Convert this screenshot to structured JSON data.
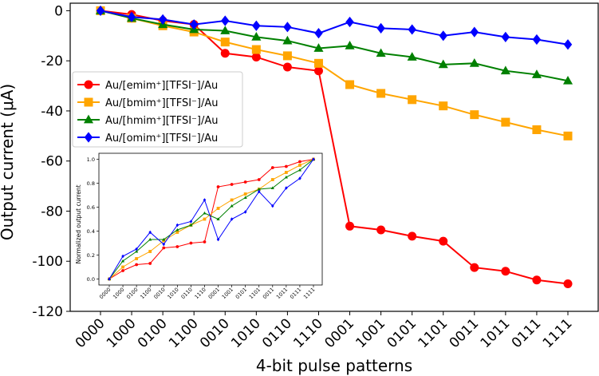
{
  "chart_data": {
    "type": "line",
    "xlabel": "4-bit pulse patterns",
    "ylabel": "Output current (μA)",
    "categories": [
      "0000",
      "1000",
      "0100",
      "1100",
      "0010",
      "1010",
      "0110",
      "1110",
      "0001",
      "1001",
      "0101",
      "1101",
      "0011",
      "1011",
      "0111",
      "1111"
    ],
    "ylim": [
      -120,
      3
    ],
    "yticks": [
      0,
      -20,
      -40,
      -60,
      -80,
      -100,
      -120
    ],
    "grid": false,
    "legend_position": "upper-left",
    "series": [
      {
        "name": "Au/[emim⁺][TFSI⁻]/Au",
        "color": "#ff0000",
        "marker": "circle",
        "values": [
          0,
          -1.5,
          -4,
          -5.5,
          -17,
          -18.5,
          -22.5,
          -24,
          -86,
          -87.5,
          -90,
          -92,
          -102.5,
          -104,
          -107.5,
          -109
        ]
      },
      {
        "name": "Au/[bmim⁺][TFSI⁻]/Au",
        "color": "#ffa500",
        "marker": "square",
        "values": [
          0,
          -3,
          -6,
          -8.5,
          -12.5,
          -15.5,
          -18,
          -21,
          -29.5,
          -33,
          -35.5,
          -38,
          -41.5,
          -44.5,
          -47.5,
          -50
        ]
      },
      {
        "name": "Au/[hmim⁺][TFSI⁻]/Au",
        "color": "#008000",
        "marker": "triangle",
        "values": [
          0,
          -3,
          -5.5,
          -7.5,
          -8,
          -10.5,
          -12,
          -15,
          -14,
          -17,
          -18.5,
          -21.5,
          -21,
          -24,
          -25.5,
          -28
        ]
      },
      {
        "name": "Au/[omim⁺][TFSI⁻]/Au",
        "color": "#0000ff",
        "marker": "diamond",
        "values": [
          0,
          -2.5,
          -3.5,
          -5.5,
          -4,
          -6,
          -6.5,
          -9,
          -4.5,
          -7,
          -7.5,
          -10,
          -8.5,
          -10.5,
          -11.5,
          -13.5
        ]
      }
    ],
    "inset": {
      "ylabel": "Normalized output current",
      "ylim": [
        -0.05,
        1.05
      ],
      "yticks": [
        "0.0",
        "0.2",
        "0.4",
        "0.6",
        "0.8",
        "1.0"
      ],
      "categories": [
        "0000",
        "1000",
        "0100",
        "1100",
        "0010",
        "1010",
        "0110",
        "1110",
        "0001",
        "1001",
        "0101",
        "1101",
        "0011",
        "1011",
        "0111",
        "1111"
      ],
      "series": [
        {
          "color": "#ff0000",
          "marker": "circle",
          "values": [
            0,
            0.07,
            0.12,
            0.13,
            0.26,
            0.27,
            0.3,
            0.31,
            0.77,
            0.79,
            0.81,
            0.83,
            0.93,
            0.94,
            0.98,
            1.0
          ]
        },
        {
          "color": "#ffa500",
          "marker": "square",
          "values": [
            0,
            0.1,
            0.17,
            0.23,
            0.32,
            0.39,
            0.45,
            0.5,
            0.59,
            0.66,
            0.71,
            0.75,
            0.83,
            0.89,
            0.95,
            1.0
          ]
        },
        {
          "color": "#008000",
          "marker": "triangle",
          "values": [
            0,
            0.15,
            0.23,
            0.33,
            0.33,
            0.41,
            0.45,
            0.55,
            0.5,
            0.61,
            0.68,
            0.75,
            0.76,
            0.85,
            0.91,
            1.0
          ]
        },
        {
          "color": "#0000ff",
          "marker": "diamond",
          "values": [
            0,
            0.19,
            0.25,
            0.39,
            0.29,
            0.45,
            0.48,
            0.66,
            0.33,
            0.5,
            0.56,
            0.73,
            0.61,
            0.76,
            0.84,
            1.0
          ]
        }
      ]
    }
  }
}
